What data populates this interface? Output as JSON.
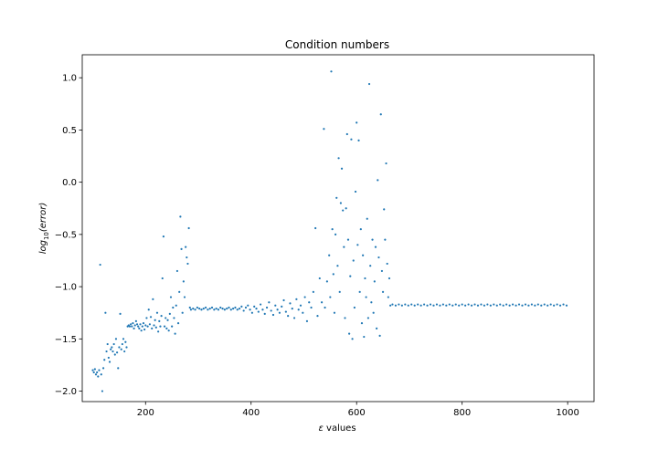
{
  "chart_data": {
    "type": "scatter",
    "title": "Condition numbers",
    "xlabel_parts": [
      "ε",
      " values"
    ],
    "ylabel_parts": [
      "log",
      "10",
      "(error)"
    ],
    "xlim": [
      80,
      1050
    ],
    "ylim": [
      -2.1,
      1.22
    ],
    "xticks": [
      200,
      400,
      600,
      800,
      1000
    ],
    "yticks": [
      -2.0,
      -1.5,
      -1.0,
      -0.5,
      0.0,
      0.5,
      1.0
    ],
    "ytick_labels": [
      "−2.0",
      "−1.5",
      "−1.0",
      "−0.5",
      "0.0",
      "0.5",
      "1.0"
    ],
    "marker_color": "#1f77b4",
    "grid": false,
    "series": [
      {
        "points": [
          [
            100,
            -1.8
          ],
          [
            102,
            -1.82
          ],
          [
            104,
            -1.79
          ],
          [
            106,
            -1.84
          ],
          [
            108,
            -1.82
          ],
          [
            110,
            -1.86
          ],
          [
            112,
            -1.8
          ],
          [
            114,
            -0.79
          ],
          [
            116,
            -1.84
          ],
          [
            118,
            -2.0
          ],
          [
            120,
            -1.78
          ],
          [
            122,
            -1.7
          ],
          [
            124,
            -1.25
          ],
          [
            126,
            -1.62
          ],
          [
            128,
            -1.55
          ],
          [
            130,
            -1.68
          ],
          [
            132,
            -1.72
          ],
          [
            134,
            -1.6
          ],
          [
            136,
            -1.58
          ],
          [
            138,
            -1.62
          ],
          [
            140,
            -1.55
          ],
          [
            142,
            -1.65
          ],
          [
            144,
            -1.5
          ],
          [
            146,
            -1.63
          ],
          [
            148,
            -1.78
          ],
          [
            150,
            -1.58
          ],
          [
            152,
            -1.26
          ],
          [
            154,
            -1.6
          ],
          [
            156,
            -1.55
          ],
          [
            158,
            -1.5
          ],
          [
            160,
            -1.62
          ],
          [
            162,
            -1.53
          ],
          [
            164,
            -1.58
          ],
          [
            166,
            -1.38
          ],
          [
            168,
            -1.37
          ],
          [
            170,
            -1.38
          ],
          [
            172,
            -1.36
          ],
          [
            174,
            -1.38
          ],
          [
            176,
            -1.35
          ],
          [
            178,
            -1.4
          ],
          [
            180,
            -1.37
          ],
          [
            182,
            -1.33
          ],
          [
            184,
            -1.36
          ],
          [
            186,
            -1.38
          ],
          [
            188,
            -1.4
          ],
          [
            190,
            -1.36
          ],
          [
            192,
            -1.42
          ],
          [
            194,
            -1.38
          ],
          [
            196,
            -1.35
          ],
          [
            198,
            -1.41
          ],
          [
            200,
            -1.37
          ],
          [
            202,
            -1.3
          ],
          [
            204,
            -1.38
          ],
          [
            206,
            -1.22
          ],
          [
            208,
            -1.36
          ],
          [
            210,
            -1.29
          ],
          [
            212,
            -1.4
          ],
          [
            214,
            -1.12
          ],
          [
            216,
            -1.37
          ],
          [
            218,
            -1.32
          ],
          [
            220,
            -1.39
          ],
          [
            222,
            -1.25
          ],
          [
            224,
            -1.43
          ],
          [
            226,
            -1.33
          ],
          [
            228,
            -1.38
          ],
          [
            230,
            -1.28
          ],
          [
            232,
            -0.92
          ],
          [
            234,
            -0.52
          ],
          [
            236,
            -1.38
          ],
          [
            238,
            -1.3
          ],
          [
            240,
            -1.4
          ],
          [
            242,
            -1.32
          ],
          [
            244,
            -1.42
          ],
          [
            246,
            -1.26
          ],
          [
            248,
            -1.1
          ],
          [
            250,
            -1.38
          ],
          [
            252,
            -1.2
          ],
          [
            254,
            -1.3
          ],
          [
            256,
            -1.45
          ],
          [
            258,
            -1.18
          ],
          [
            260,
            -0.85
          ],
          [
            262,
            -1.35
          ],
          [
            264,
            -1.05
          ],
          [
            266,
            -0.33
          ],
          [
            268,
            -0.64
          ],
          [
            270,
            -1.25
          ],
          [
            272,
            -0.95
          ],
          [
            274,
            -1.1
          ],
          [
            276,
            -0.62
          ],
          [
            278,
            -0.72
          ],
          [
            280,
            -0.78
          ],
          [
            282,
            -0.44
          ],
          [
            284,
            -1.2
          ],
          [
            286,
            -1.22
          ],
          [
            290,
            -1.21
          ],
          [
            294,
            -1.22
          ],
          [
            298,
            -1.2
          ],
          [
            302,
            -1.21
          ],
          [
            306,
            -1.22
          ],
          [
            310,
            -1.21
          ],
          [
            314,
            -1.2
          ],
          [
            318,
            -1.22
          ],
          [
            322,
            -1.21
          ],
          [
            326,
            -1.2
          ],
          [
            330,
            -1.22
          ],
          [
            334,
            -1.21
          ],
          [
            338,
            -1.22
          ],
          [
            342,
            -1.2
          ],
          [
            346,
            -1.21
          ],
          [
            350,
            -1.22
          ],
          [
            354,
            -1.21
          ],
          [
            358,
            -1.2
          ],
          [
            362,
            -1.22
          ],
          [
            366,
            -1.21
          ],
          [
            370,
            -1.2
          ],
          [
            374,
            -1.22
          ],
          [
            378,
            -1.21
          ],
          [
            382,
            -1.19
          ],
          [
            386,
            -1.23
          ],
          [
            390,
            -1.2
          ],
          [
            394,
            -1.18
          ],
          [
            398,
            -1.22
          ],
          [
            402,
            -1.25
          ],
          [
            406,
            -1.19
          ],
          [
            410,
            -1.21
          ],
          [
            414,
            -1.24
          ],
          [
            418,
            -1.17
          ],
          [
            422,
            -1.22
          ],
          [
            426,
            -1.26
          ],
          [
            430,
            -1.2
          ],
          [
            434,
            -1.15
          ],
          [
            438,
            -1.23
          ],
          [
            442,
            -1.27
          ],
          [
            446,
            -1.18
          ],
          [
            450,
            -1.22
          ],
          [
            454,
            -1.25
          ],
          [
            458,
            -1.19
          ],
          [
            462,
            -1.13
          ],
          [
            466,
            -1.24
          ],
          [
            470,
            -1.28
          ],
          [
            474,
            -1.16
          ],
          [
            478,
            -1.21
          ],
          [
            482,
            -1.3
          ],
          [
            486,
            -1.12
          ],
          [
            490,
            -1.22
          ],
          [
            494,
            -1.18
          ],
          [
            498,
            -1.25
          ],
          [
            502,
            -1.1
          ],
          [
            506,
            -1.33
          ],
          [
            510,
            -1.15
          ],
          [
            514,
            -1.2
          ],
          [
            518,
            -1.05
          ],
          [
            522,
            -0.44
          ],
          [
            526,
            -1.28
          ],
          [
            530,
            -0.92
          ],
          [
            534,
            -1.15
          ],
          [
            538,
            0.51
          ],
          [
            540,
            -1.2
          ],
          [
            544,
            -0.95
          ],
          [
            548,
            -0.7
          ],
          [
            550,
            -1.1
          ],
          [
            552,
            1.06
          ],
          [
            554,
            -0.45
          ],
          [
            556,
            -0.88
          ],
          [
            558,
            -1.25
          ],
          [
            560,
            -0.5
          ],
          [
            562,
            -0.15
          ],
          [
            564,
            -0.8
          ],
          [
            566,
            0.23
          ],
          [
            568,
            -1.05
          ],
          [
            570,
            -0.2
          ],
          [
            572,
            0.13
          ],
          [
            574,
            -0.27
          ],
          [
            576,
            -0.62
          ],
          [
            578,
            -1.3
          ],
          [
            580,
            -0.25
          ],
          [
            582,
            0.46
          ],
          [
            584,
            -0.55
          ],
          [
            586,
            -1.45
          ],
          [
            588,
            -0.9
          ],
          [
            590,
            0.41
          ],
          [
            592,
            -1.5
          ],
          [
            594,
            -0.75
          ],
          [
            596,
            -1.2
          ],
          [
            598,
            -0.09
          ],
          [
            600,
            0.57
          ],
          [
            602,
            -0.6
          ],
          [
            604,
            0.4
          ],
          [
            606,
            -1.05
          ],
          [
            608,
            -0.45
          ],
          [
            610,
            -1.35
          ],
          [
            612,
            -0.7
          ],
          [
            614,
            -1.48
          ],
          [
            616,
            -0.92
          ],
          [
            618,
            -1.1
          ],
          [
            620,
            -0.35
          ],
          [
            622,
            -1.3
          ],
          [
            624,
            0.94
          ],
          [
            626,
            -0.8
          ],
          [
            628,
            -1.15
          ],
          [
            630,
            -0.55
          ],
          [
            632,
            -1.25
          ],
          [
            634,
            -0.95
          ],
          [
            636,
            -0.62
          ],
          [
            638,
            -1.4
          ],
          [
            640,
            0.02
          ],
          [
            642,
            -0.72
          ],
          [
            644,
            -1.47
          ],
          [
            646,
            0.65
          ],
          [
            648,
            -0.85
          ],
          [
            650,
            -1.05
          ],
          [
            652,
            -0.26
          ],
          [
            654,
            -0.55
          ],
          [
            656,
            0.18
          ],
          [
            658,
            -0.78
          ],
          [
            660,
            -1.1
          ],
          [
            662,
            -0.92
          ],
          [
            664,
            -1.18
          ],
          [
            668,
            -1.17
          ],
          [
            674,
            -1.18
          ],
          [
            680,
            -1.17
          ],
          [
            686,
            -1.18
          ],
          [
            692,
            -1.17
          ],
          [
            698,
            -1.18
          ],
          [
            704,
            -1.17
          ],
          [
            710,
            -1.18
          ],
          [
            716,
            -1.17
          ],
          [
            722,
            -1.18
          ],
          [
            728,
            -1.17
          ],
          [
            734,
            -1.18
          ],
          [
            740,
            -1.17
          ],
          [
            746,
            -1.18
          ],
          [
            752,
            -1.17
          ],
          [
            758,
            -1.18
          ],
          [
            764,
            -1.17
          ],
          [
            770,
            -1.18
          ],
          [
            776,
            -1.17
          ],
          [
            782,
            -1.18
          ],
          [
            788,
            -1.17
          ],
          [
            794,
            -1.18
          ],
          [
            800,
            -1.17
          ],
          [
            806,
            -1.18
          ],
          [
            812,
            -1.17
          ],
          [
            818,
            -1.18
          ],
          [
            824,
            -1.17
          ],
          [
            830,
            -1.18
          ],
          [
            836,
            -1.17
          ],
          [
            842,
            -1.18
          ],
          [
            848,
            -1.17
          ],
          [
            854,
            -1.18
          ],
          [
            860,
            -1.17
          ],
          [
            866,
            -1.18
          ],
          [
            872,
            -1.17
          ],
          [
            878,
            -1.18
          ],
          [
            884,
            -1.17
          ],
          [
            890,
            -1.18
          ],
          [
            896,
            -1.17
          ],
          [
            902,
            -1.18
          ],
          [
            908,
            -1.17
          ],
          [
            914,
            -1.18
          ],
          [
            920,
            -1.17
          ],
          [
            926,
            -1.18
          ],
          [
            932,
            -1.17
          ],
          [
            938,
            -1.18
          ],
          [
            944,
            -1.17
          ],
          [
            950,
            -1.18
          ],
          [
            956,
            -1.17
          ],
          [
            962,
            -1.18
          ],
          [
            968,
            -1.17
          ],
          [
            974,
            -1.18
          ],
          [
            980,
            -1.17
          ],
          [
            986,
            -1.18
          ],
          [
            992,
            -1.17
          ],
          [
            998,
            -1.18
          ]
        ]
      }
    ]
  }
}
